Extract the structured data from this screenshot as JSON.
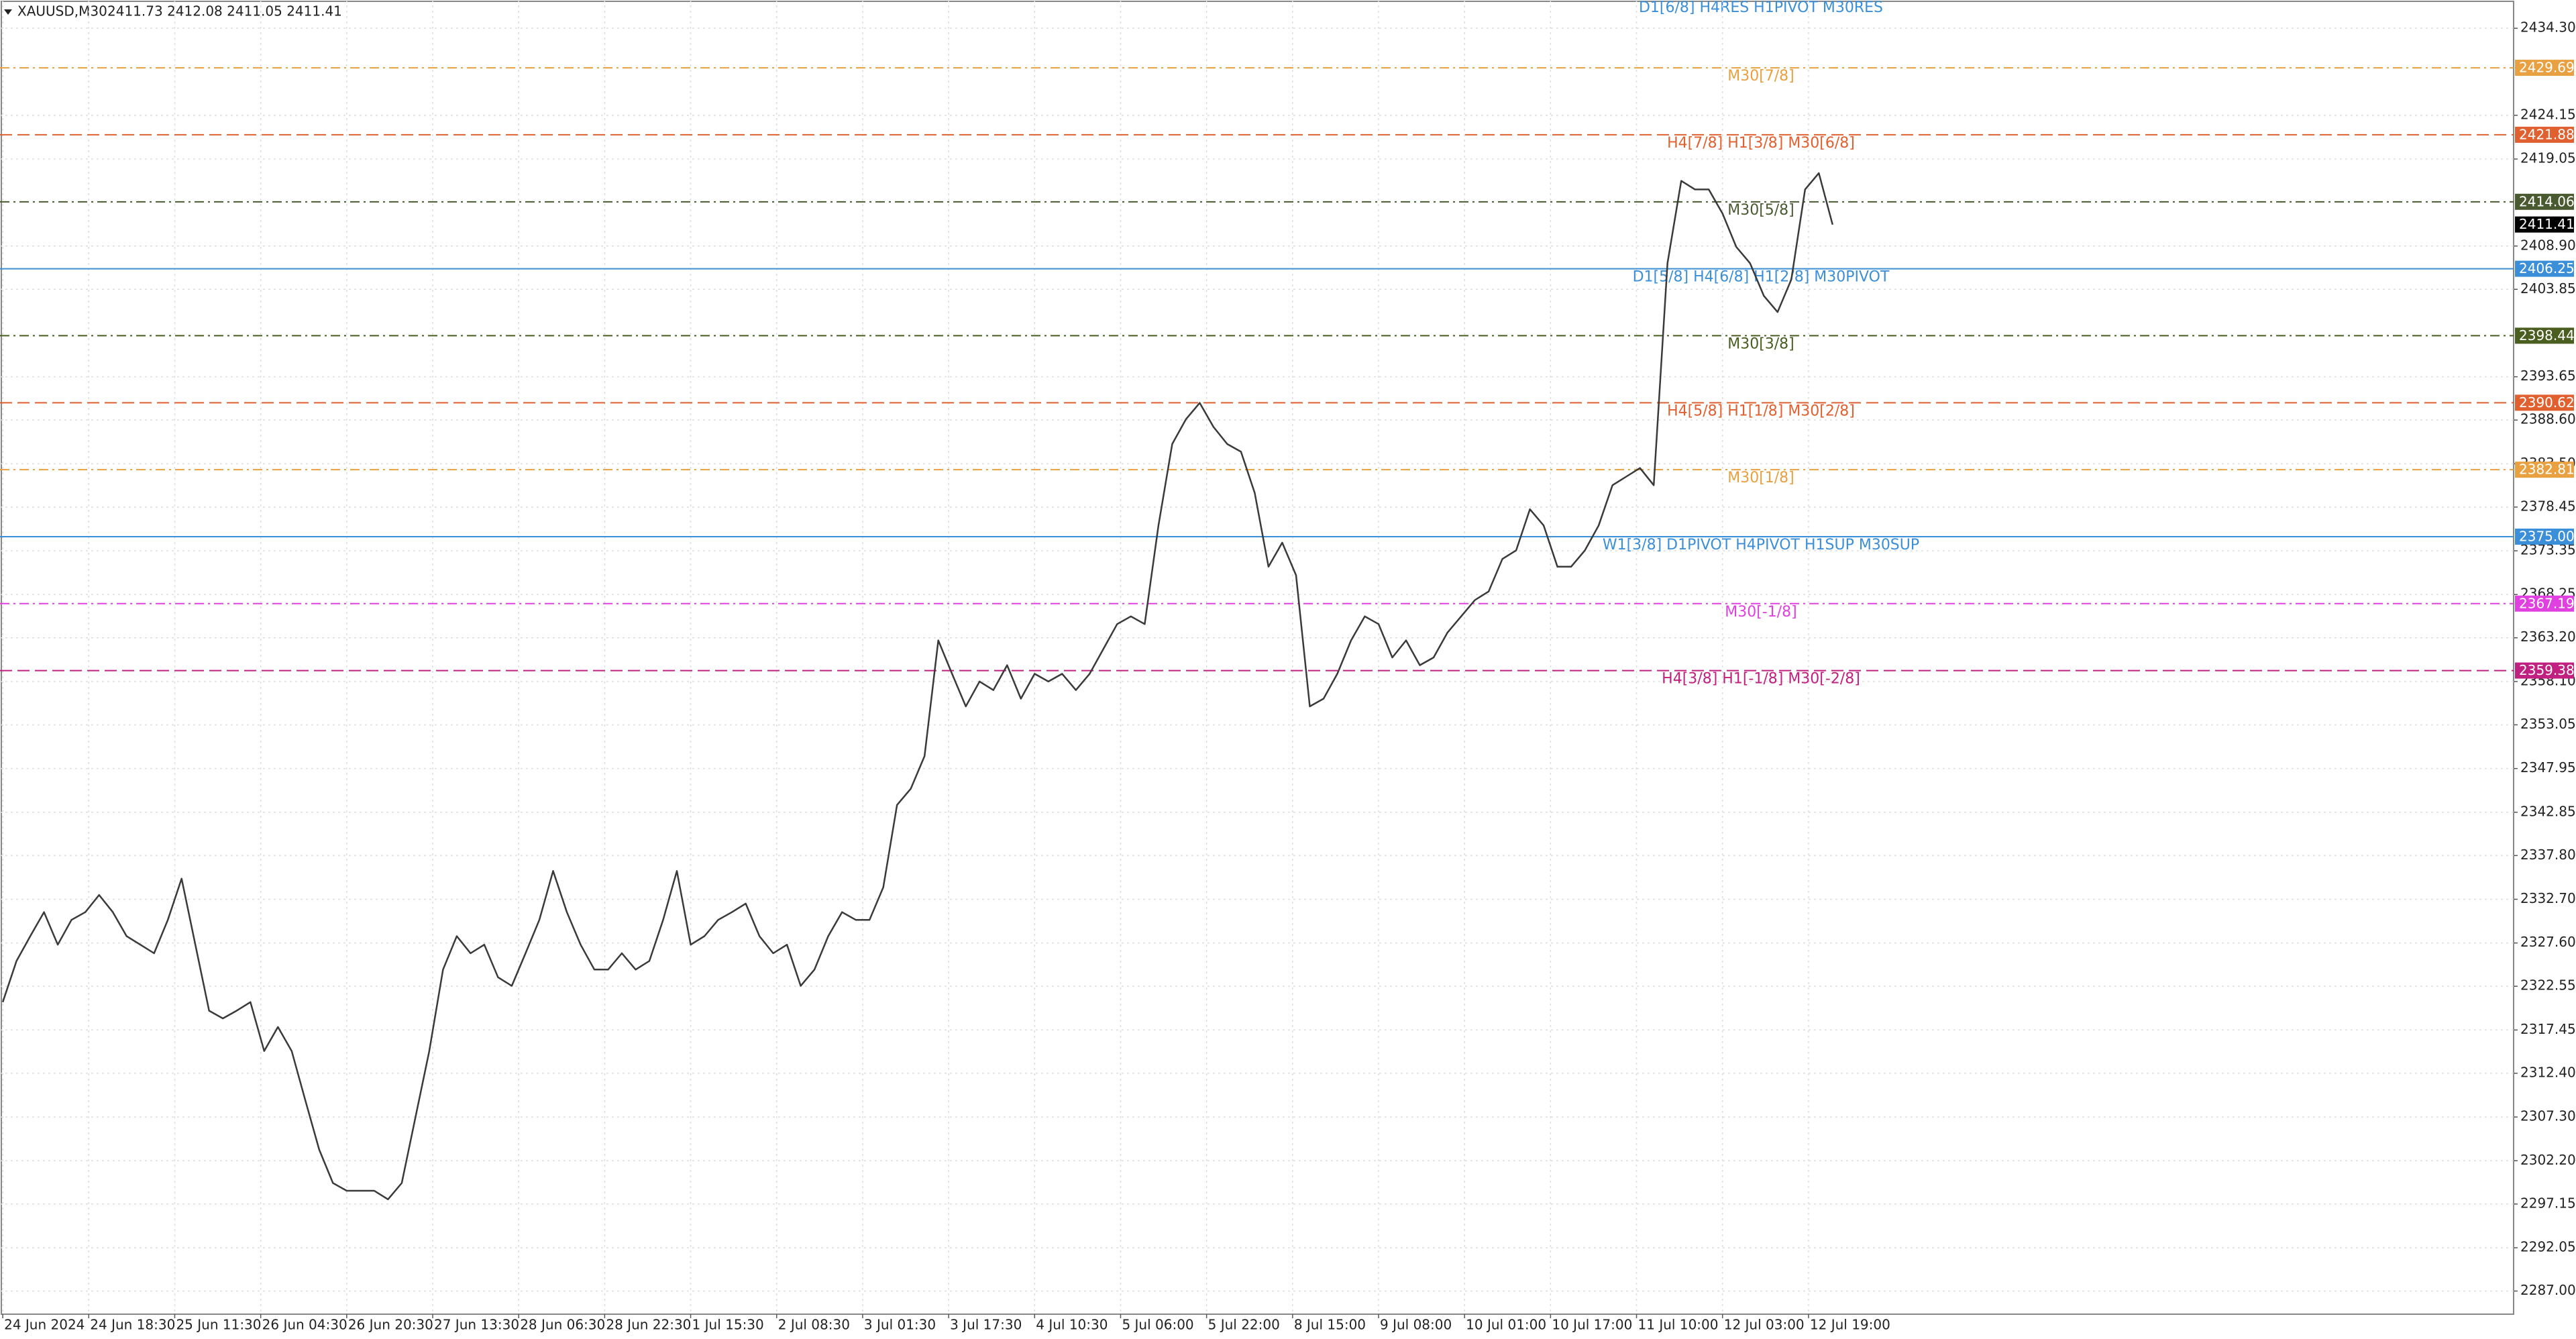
{
  "chart_data": {
    "type": "line",
    "symbol": "XAUUSD,M30",
    "quote": "2411.73 2412.08 2411.05 2411.41",
    "annotation": "D1[6/8] H4RES H1PIVOT M30RES",
    "series": [
      {
        "name": "XAUUSD",
        "color": "#3a3a3a",
        "values": [
          2320.7,
          2325.5,
          2328.4,
          2331.2,
          2327.4,
          2330.3,
          2331.2,
          2333.2,
          2331.2,
          2328.4,
          2327.4,
          2326.4,
          2330.3,
          2335.1,
          2327.4,
          2319.7,
          2318.8,
          2319.7,
          2320.7,
          2315.0,
          2317.8,
          2315.0,
          2309.2,
          2303.5,
          2299.6,
          2298.7,
          2298.7,
          2298.7,
          2297.7,
          2299.6,
          2307.3,
          2315.0,
          2324.5,
          2328.4,
          2326.4,
          2327.4,
          2323.6,
          2322.6,
          2326.4,
          2330.3,
          2336.0,
          2331.2,
          2327.4,
          2324.5,
          2324.5,
          2326.4,
          2324.5,
          2325.5,
          2330.3,
          2336.0,
          2327.4,
          2328.4,
          2330.3,
          2331.2,
          2332.2,
          2328.4,
          2326.4,
          2327.4,
          2322.6,
          2324.5,
          2328.4,
          2331.2,
          2330.3,
          2330.3,
          2334.1,
          2343.7,
          2345.6,
          2349.4,
          2362.9,
          2359.0,
          2355.2,
          2358.1,
          2357.1,
          2360.0,
          2356.1,
          2359.0,
          2358.1,
          2359.0,
          2357.1,
          2359.0,
          2361.9,
          2364.8,
          2365.7,
          2364.8,
          2376.3,
          2385.8,
          2388.7,
          2390.6,
          2387.8,
          2385.8,
          2384.9,
          2380.1,
          2371.5,
          2374.3,
          2370.5,
          2355.2,
          2356.1,
          2359.0,
          2362.9,
          2365.7,
          2364.8,
          2360.9,
          2362.9,
          2360.0,
          2360.9,
          2363.8,
          2365.7,
          2367.6,
          2368.6,
          2372.4,
          2373.4,
          2378.2,
          2376.3,
          2371.5,
          2371.5,
          2373.4,
          2376.3,
          2381.0,
          2382.0,
          2383.0,
          2381.0,
          2406.9,
          2416.5,
          2415.5,
          2415.5,
          2412.7,
          2408.8,
          2406.9,
          2403.1,
          2401.2,
          2405.0,
          2415.5,
          2417.4,
          2411.4
        ]
      }
    ],
    "xlim": [
      -0.2,
      182.5
    ],
    "xticks": [
      {
        "value": 0,
        "label": "24 Jun 2024"
      },
      {
        "value": 6.25,
        "label": "24 Jun 18:30"
      },
      {
        "value": 12.5,
        "label": "25 Jun 11:30"
      },
      {
        "value": 18.75,
        "label": "26 Jun 04:30"
      },
      {
        "value": 25,
        "label": "26 Jun 20:30"
      },
      {
        "value": 31.25,
        "label": "27 Jun 13:30"
      },
      {
        "value": 37.5,
        "label": "28 Jun 06:30"
      },
      {
        "value": 43.75,
        "label": "28 Jun 22:30"
      },
      {
        "value": 50,
        "label": "1 Jul 15:30"
      },
      {
        "value": 56.25,
        "label": "2 Jul 08:30"
      },
      {
        "value": 62.5,
        "label": "3 Jul 01:30"
      },
      {
        "value": 68.75,
        "label": "3 Jul 17:30"
      },
      {
        "value": 75,
        "label": "4 Jul 10:30"
      },
      {
        "value": 81.25,
        "label": "5 Jul 06:00"
      },
      {
        "value": 87.5,
        "label": "5 Jul 22:00"
      },
      {
        "value": 93.75,
        "label": "8 Jul 15:00"
      },
      {
        "value": 100,
        "label": "9 Jul 08:00"
      },
      {
        "value": 106.25,
        "label": "10 Jul 01:00"
      },
      {
        "value": 112.5,
        "label": "10 Jul 17:00"
      },
      {
        "value": 118.75,
        "label": "11 Jul 10:00"
      },
      {
        "value": 125,
        "label": "12 Jul 03:00"
      },
      {
        "value": 131.25,
        "label": "12 Jul 19:00"
      }
    ],
    "ylim": [
      2284.3,
      2437.6
    ],
    "yticks": [
      {
        "value": 2434.3,
        "label": "2434.30"
      },
      {
        "value": 2424.15,
        "label": "2424.15"
      },
      {
        "value": 2419.05,
        "label": "2419.05"
      },
      {
        "value": 2408.9,
        "label": "2408.90"
      },
      {
        "value": 2403.85,
        "label": "2403.85"
      },
      {
        "value": 2393.65,
        "label": "2393.65"
      },
      {
        "value": 2388.6,
        "label": "2388.60"
      },
      {
        "value": 2383.5,
        "label": "2383.50"
      },
      {
        "value": 2378.45,
        "label": "2378.45"
      },
      {
        "value": 2373.35,
        "label": "2373.35"
      },
      {
        "value": 2368.25,
        "label": "2368.25"
      },
      {
        "value": 2363.2,
        "label": "2363.20"
      },
      {
        "value": 2358.1,
        "label": "2358.10"
      },
      {
        "value": 2353.05,
        "label": "2353.05"
      },
      {
        "value": 2347.95,
        "label": "2347.95"
      },
      {
        "value": 2342.85,
        "label": "2342.85"
      },
      {
        "value": 2337.8,
        "label": "2337.80"
      },
      {
        "value": 2332.7,
        "label": "2332.70"
      },
      {
        "value": 2327.6,
        "label": "2327.60"
      },
      {
        "value": 2322.55,
        "label": "2322.55"
      },
      {
        "value": 2317.45,
        "label": "2317.45"
      },
      {
        "value": 2312.4,
        "label": "2312.40"
      },
      {
        "value": 2307.3,
        "label": "2307.30"
      },
      {
        "value": 2302.2,
        "label": "2302.20"
      },
      {
        "value": 2297.15,
        "label": "2297.15"
      },
      {
        "value": 2292.05,
        "label": "2292.05"
      },
      {
        "value": 2287,
        "label": "2287.00"
      }
    ],
    "grid": true,
    "levels": [
      {
        "text": "M30[7/8]",
        "price": 2429.69,
        "price_label": "2429.69",
        "color": "#e8a040",
        "style": "dashdot"
      },
      {
        "text": "H4[7/8] H1[3/8] M30[6/8]",
        "price": 2421.88,
        "price_label": "2421.88",
        "color": "#e06030",
        "style": "dashed"
      },
      {
        "text": "M30[5/8]",
        "price": 2414.06,
        "price_label": "2414.06",
        "color": "#4a5a30",
        "style": "dashdot"
      },
      {
        "text": "D1[5/8] H4[6/8] H1[2/8] M30PIVOT",
        "price": 2406.25,
        "price_label": "2406.25",
        "color": "#3a8fd8",
        "style": "solid"
      },
      {
        "text": "M30[3/8]",
        "price": 2398.44,
        "price_label": "2398.44",
        "color": "#4a5e20",
        "style": "dashdot"
      },
      {
        "text": "H4[5/8] H1[1/8] M30[2/8]",
        "price": 2390.62,
        "price_label": "2390.62",
        "color": "#e06030",
        "style": "dashed"
      },
      {
        "text": "M30[1/8]",
        "price": 2382.81,
        "price_label": "2382.81",
        "color": "#e8a040",
        "style": "dashdot"
      },
      {
        "text": "W1[3/8] D1PIVOT H4PIVOT H1SUP M30SUP",
        "price": 2375,
        "price_label": "2375.00",
        "color": "#3a8fd8",
        "style": "solid"
      },
      {
        "text": "M30[-1/8]",
        "price": 2367.19,
        "price_label": "2367.19",
        "color": "#e040e0",
        "style": "dashdot"
      },
      {
        "text": "H4[3/8] H1[-1/8] M30[-2/8]",
        "price": 2359.38,
        "price_label": "2359.38",
        "color": "#c02080",
        "style": "dashed"
      }
    ],
    "last": {
      "price": 2411.41,
      "price_label": "2411.41",
      "color": "#000000"
    }
  }
}
